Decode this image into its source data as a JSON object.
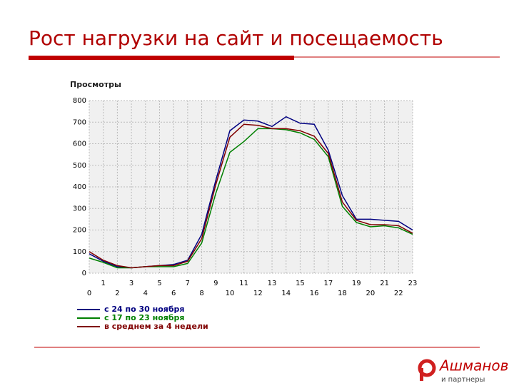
{
  "slide": {
    "title": "Рост нагрузки на сайт и посещаемость",
    "logo": {
      "name": "Ашманов",
      "sub": "и партнеры"
    }
  },
  "chart_data": {
    "type": "line",
    "title": "Просмотры",
    "x": [
      0,
      1,
      2,
      3,
      4,
      5,
      6,
      7,
      8,
      9,
      10,
      11,
      12,
      13,
      14,
      15,
      16,
      17,
      18,
      19,
      20,
      21,
      22,
      23
    ],
    "xlim": [
      0,
      23
    ],
    "xticks": [
      0,
      1,
      2,
      3,
      4,
      5,
      6,
      7,
      8,
      9,
      10,
      11,
      12,
      13,
      14,
      15,
      16,
      17,
      18,
      19,
      20,
      21,
      22,
      23
    ],
    "ylim": [
      0,
      800
    ],
    "yticks": [
      0,
      100,
      200,
      300,
      400,
      500,
      600,
      700,
      800
    ],
    "grid": true,
    "series": [
      {
        "name": "с 24 по 30 ноября",
        "color": "#000080",
        "values": [
          90,
          55,
          30,
          25,
          30,
          35,
          40,
          60,
          180,
          430,
          660,
          710,
          705,
          680,
          725,
          695,
          690,
          570,
          360,
          250,
          250,
          245,
          240,
          200
        ]
      },
      {
        "name": "с 17 по 23 ноября",
        "color": "#008000",
        "values": [
          70,
          50,
          25,
          25,
          30,
          30,
          30,
          45,
          140,
          370,
          560,
          610,
          670,
          670,
          665,
          650,
          620,
          540,
          310,
          235,
          215,
          220,
          210,
          180
        ]
      },
      {
        "name": "в среднем за 4 недели",
        "color": "#800000",
        "values": [
          100,
          60,
          35,
          25,
          30,
          35,
          35,
          55,
          160,
          410,
          630,
          690,
          685,
          670,
          670,
          660,
          635,
          555,
          330,
          245,
          225,
          225,
          220,
          185
        ]
      }
    ]
  }
}
